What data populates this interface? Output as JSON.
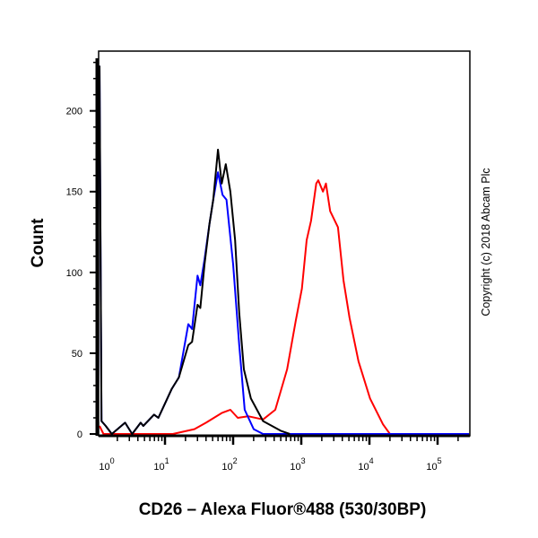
{
  "chart_data": {
    "type": "line",
    "title": "",
    "xlabel": "CD26 – Alexa Fluor®488 (530/30BP)",
    "ylabel": "Count",
    "x_scale": "log",
    "xlim": [
      1,
      290000
    ],
    "ylim": [
      0,
      237
    ],
    "y_ticks": [
      0,
      50,
      100,
      150,
      200
    ],
    "x_ticks": [
      {
        "base": "10",
        "exp": "0"
      },
      {
        "base": "10",
        "exp": "1"
      },
      {
        "base": "10",
        "exp": "2"
      },
      {
        "base": "10",
        "exp": "3"
      },
      {
        "base": "10",
        "exp": "4"
      },
      {
        "base": "10",
        "exp": "5"
      }
    ],
    "grid": false,
    "legend": "none",
    "series": [
      {
        "color": "#ff0000",
        "points": [
          [
            1.07,
            5
          ],
          [
            1.25,
            0
          ],
          [
            13,
            0
          ],
          [
            27,
            3
          ],
          [
            40,
            7
          ],
          [
            68,
            13
          ],
          [
            91,
            15
          ],
          [
            117,
            10
          ],
          [
            166,
            11
          ],
          [
            275,
            9
          ],
          [
            415,
            15
          ],
          [
            620,
            40
          ],
          [
            830,
            70
          ],
          [
            1020,
            90
          ],
          [
            1200,
            120
          ],
          [
            1390,
            132
          ],
          [
            1660,
            155
          ],
          [
            1780,
            157
          ],
          [
            2080,
            150
          ],
          [
            2300,
            155
          ],
          [
            2650,
            138
          ],
          [
            3450,
            128
          ],
          [
            4170,
            95
          ],
          [
            5100,
            72
          ],
          [
            6900,
            45
          ],
          [
            10200,
            22
          ],
          [
            15800,
            6
          ],
          [
            20000,
            0
          ],
          [
            290000,
            0
          ]
        ]
      },
      {
        "color": "#0000ff",
        "points": [
          [
            1.02,
            228
          ],
          [
            1.17,
            8
          ],
          [
            1.35,
            5
          ],
          [
            1.66,
            0
          ],
          [
            2.6,
            7
          ],
          [
            3.3,
            0
          ],
          [
            4.4,
            7
          ],
          [
            4.8,
            5
          ],
          [
            6.9,
            12
          ],
          [
            8,
            10
          ],
          [
            9.8,
            18
          ],
          [
            12.6,
            28
          ],
          [
            16,
            35
          ],
          [
            22,
            68
          ],
          [
            25,
            65
          ],
          [
            30,
            98
          ],
          [
            33,
            92
          ],
          [
            38,
            108
          ],
          [
            45,
            130
          ],
          [
            51,
            145
          ],
          [
            60,
            162
          ],
          [
            70,
            148
          ],
          [
            80,
            145
          ],
          [
            100,
            105
          ],
          [
            123,
            55
          ],
          [
            148,
            15
          ],
          [
            200,
            3
          ],
          [
            275,
            0
          ],
          [
            290000,
            0
          ]
        ]
      },
      {
        "color": "#000000",
        "points": [
          [
            1.02,
            228
          ],
          [
            1.17,
            8
          ],
          [
            1.35,
            5
          ],
          [
            1.66,
            0
          ],
          [
            2.6,
            7
          ],
          [
            3.3,
            0
          ],
          [
            4.4,
            7
          ],
          [
            4.8,
            5
          ],
          [
            6.9,
            12
          ],
          [
            8,
            10
          ],
          [
            9.8,
            18
          ],
          [
            12.6,
            28
          ],
          [
            16,
            35
          ],
          [
            22,
            55
          ],
          [
            25,
            57
          ],
          [
            30,
            80
          ],
          [
            33,
            78
          ],
          [
            38,
            105
          ],
          [
            45,
            130
          ],
          [
            51,
            145
          ],
          [
            60,
            176
          ],
          [
            68,
            155
          ],
          [
            78,
            167
          ],
          [
            91,
            150
          ],
          [
            107,
            120
          ],
          [
            123,
            75
          ],
          [
            144,
            40
          ],
          [
            182,
            22
          ],
          [
            275,
            8
          ],
          [
            500,
            2
          ],
          [
            680,
            0
          ]
        ]
      }
    ]
  },
  "copyright": "Copyright (c) 2018 Abcam Plc"
}
